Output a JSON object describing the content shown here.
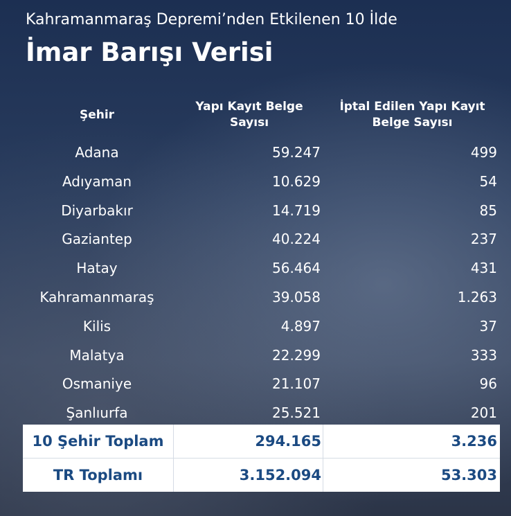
{
  "header": {
    "subtitle": "Kahramanmaraş Depremi’nden Etkilenen 10 İlde",
    "title": "İmar Barışı Verisi"
  },
  "table": {
    "columns": [
      "Şehir",
      "Yapı Kayıt Belge Sayısı",
      "İptal Edilen Yapı Kayıt Belge Sayısı"
    ],
    "rows": [
      [
        "Adana",
        "59.247",
        "499"
      ],
      [
        "Adıyaman",
        "10.629",
        "54"
      ],
      [
        "Diyarbakır",
        "14.719",
        "85"
      ],
      [
        "Gaziantep",
        "40.224",
        "237"
      ],
      [
        "Hatay",
        "56.464",
        "431"
      ],
      [
        "Kahramanmaraş",
        "39.058",
        "1.263"
      ],
      [
        "Kilis",
        "4.897",
        "37"
      ],
      [
        "Malatya",
        "22.299",
        "333"
      ],
      [
        "Osmaniye",
        "21.107",
        "96"
      ],
      [
        "Şanlıurfa",
        "25.521",
        "201"
      ]
    ],
    "totals": [
      [
        "10 Şehir Toplam",
        "294.165",
        "3.236"
      ],
      [
        "TR Toplamı",
        "3.152.094",
        "53.303"
      ]
    ]
  }
}
